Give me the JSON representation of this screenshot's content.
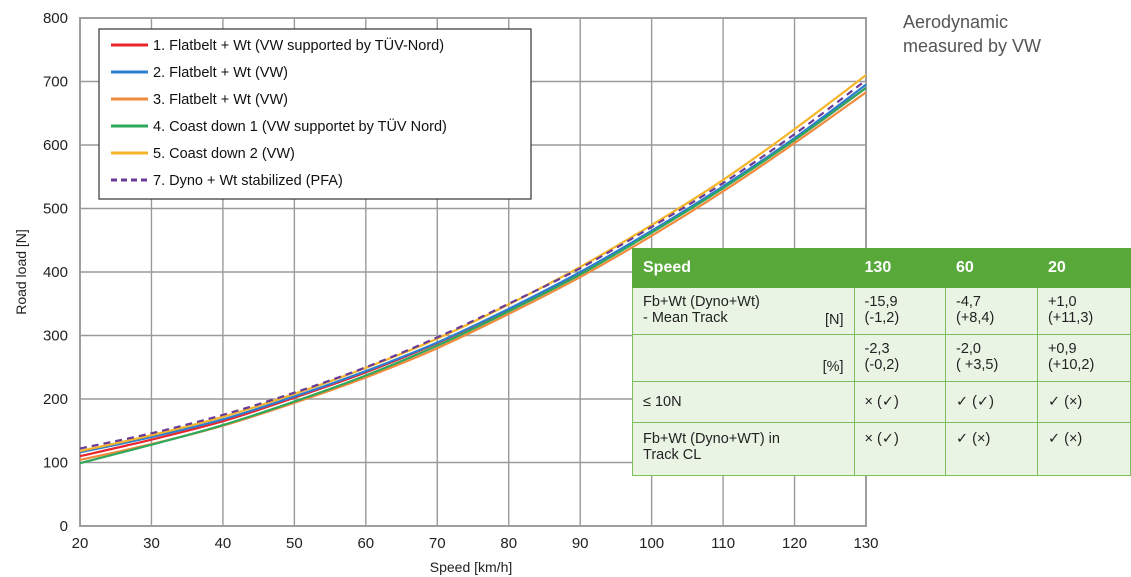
{
  "annotation": "Aerodynamic\nmeasured by VW",
  "chart_data": {
    "type": "line",
    "xlabel": "Speed [km/h]",
    "ylabel": "Road load [N]",
    "xlim": [
      20,
      130
    ],
    "ylim": [
      0,
      800
    ],
    "xticks": [
      20,
      30,
      40,
      50,
      60,
      70,
      80,
      90,
      100,
      110,
      120,
      130
    ],
    "yticks": [
      0,
      100,
      200,
      300,
      400,
      500,
      600,
      700,
      800
    ],
    "grid": true,
    "legend_position": "top-left",
    "x": [
      20,
      30,
      40,
      50,
      60,
      70,
      80,
      90,
      100,
      110,
      120,
      130
    ],
    "series": [
      {
        "name": "1. Flatbelt + Wt (VW supported by TÜV-Nord)",
        "color": "#e8262c",
        "dash": false,
        "values": [
          110,
          136,
          165,
          202,
          242,
          288,
          341,
          398,
          463,
          533,
          608,
          690
        ]
      },
      {
        "name": "2. Flatbelt + Wt (VW)",
        "color": "#2c7fd0",
        "dash": false,
        "values": [
          116,
          140,
          168,
          204,
          244,
          289,
          342,
          400,
          465,
          535,
          611,
          695
        ]
      },
      {
        "name": "3. Flatbelt + Wt (VW)",
        "color": "#f08a3c",
        "dash": false,
        "values": [
          104,
          129,
          158,
          194,
          234,
          280,
          334,
          392,
          457,
          527,
          603,
          683
        ]
      },
      {
        "name": "4. Coast down 1 (VW supportet by TÜV Nord)",
        "color": "#2ea85a",
        "dash": false,
        "values": [
          99,
          128,
          159,
          196,
          237,
          284,
          338,
          396,
          462,
          532,
          608,
          690
        ]
      },
      {
        "name": "5. Coast down 2 (VW)",
        "color": "#f5b52a",
        "dash": false,
        "values": [
          118,
          143,
          172,
          208,
          249,
          295,
          349,
          408,
          474,
          545,
          625,
          710
        ]
      },
      {
        "name": "7. Dyno + Wt stabilized (PFA)",
        "color": "#6a3b97",
        "dash": true,
        "values": [
          122,
          146,
          175,
          210,
          250,
          297,
          350,
          406,
          471,
          540,
          617,
          702
        ]
      }
    ]
  },
  "table": {
    "headers": [
      "Speed",
      "130",
      "60",
      "20"
    ],
    "row1_label": "Fb+Wt (Dyno+Wt)\n- Mean Track",
    "row1_unit": "[N]",
    "row1_values": [
      "-15,9\n(-1,2)",
      "-4,7\n(+8,4)",
      "+1,0\n(+11,3)"
    ],
    "row2_unit": "[%]",
    "row2_values": [
      "-2,3\n(-0,2)",
      "-2,0\n( +3,5)",
      "+0,9\n(+10,2)"
    ],
    "row3_label": "≤ 10N",
    "row3_values": [
      "× (✓)",
      "✓ (✓)",
      "✓ (×)"
    ],
    "row4_label": "Fb+Wt (Dyno+WT) in\nTrack CL",
    "row4_values": [
      "× (✓)",
      "✓ (×)",
      "✓ (×)"
    ]
  }
}
